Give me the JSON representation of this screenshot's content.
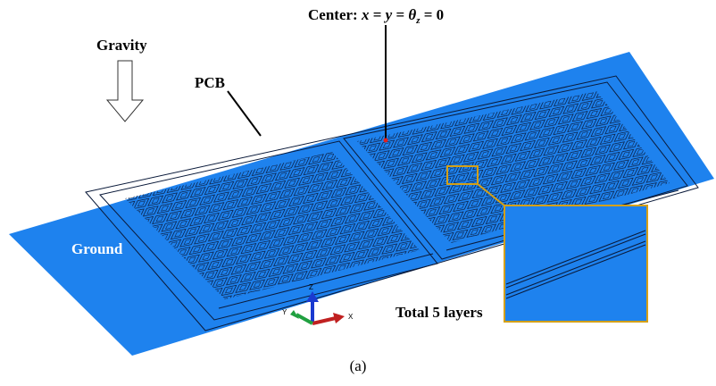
{
  "labels": {
    "gravity": "Gravity",
    "pcb": "PCB",
    "center": {
      "prefix": "Center: ",
      "x": "x",
      "eq1": " = ",
      "y": "y",
      "eq2": " = ",
      "theta": "θ",
      "sub": "z",
      "tail": " = 0"
    },
    "ground": "Ground",
    "layers": "Total 5 layers",
    "caption": "(a)",
    "axis_z": "Z",
    "axis_y": "Y",
    "axis_x": "X"
  }
}
